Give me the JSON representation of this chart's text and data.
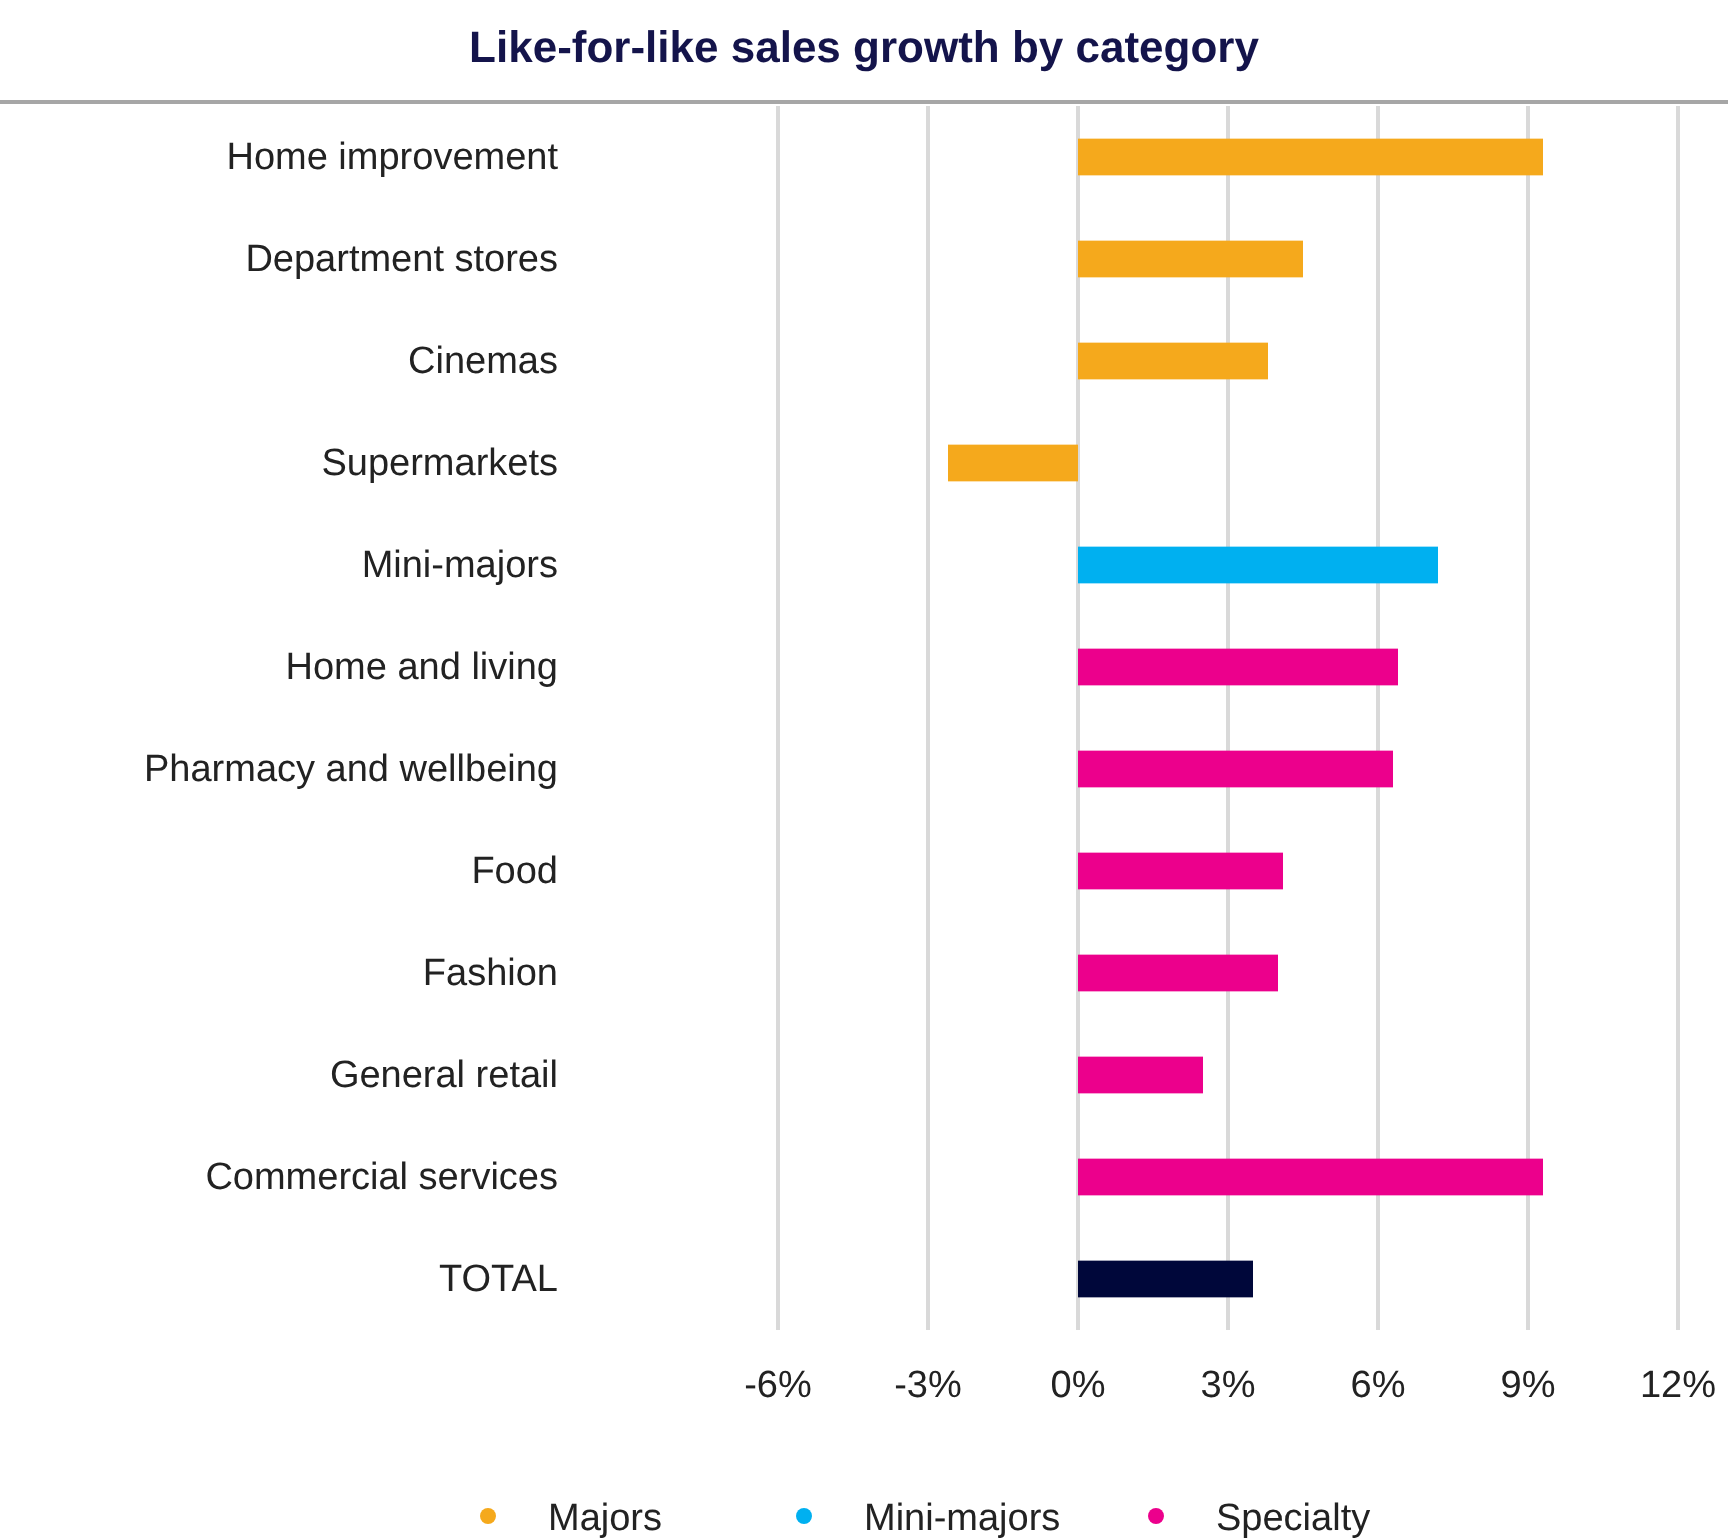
{
  "chart_data": {
    "type": "bar",
    "orientation": "horizontal",
    "stacked": true,
    "title": "Like-for-like sales growth by category",
    "categories": [
      "Home improvement",
      "Department stores",
      "Cinemas",
      "Supermarkets",
      "Mini-majors",
      "Home and living",
      "Pharmacy and wellbeing",
      "Food",
      "Fashion",
      "General retail",
      "Commercial services",
      "TOTAL"
    ],
    "series": [
      {
        "name": "Majors",
        "color": "#f5a91c",
        "values": [
          9.3,
          4.5,
          3.8,
          -2.6,
          null,
          null,
          null,
          null,
          null,
          null,
          null,
          null
        ]
      },
      {
        "name": "Mini-majors",
        "color": "#00b0f0",
        "values": [
          null,
          null,
          null,
          null,
          7.2,
          null,
          null,
          null,
          null,
          null,
          null,
          null
        ]
      },
      {
        "name": "Specialty",
        "color": "#ec008c",
        "values": [
          null,
          null,
          null,
          null,
          null,
          6.4,
          6.3,
          4.1,
          4.0,
          2.5,
          9.3,
          null
        ]
      },
      {
        "color": "#00073a",
        "values": [
          null,
          null,
          null,
          null,
          null,
          null,
          null,
          null,
          null,
          null,
          null,
          3.5
        ]
      }
    ],
    "xlim": [
      -6,
      12
    ],
    "xticks": [
      {
        "value": -6,
        "label": "-6%"
      },
      {
        "value": -3,
        "label": "-3%"
      },
      {
        "value": 0,
        "label": "0%"
      },
      {
        "value": 3,
        "label": "3%"
      },
      {
        "value": 6,
        "label": "6%"
      },
      {
        "value": 9,
        "label": "9%"
      },
      {
        "value": 12,
        "label": "12%"
      }
    ],
    "grid": "x",
    "legend": "bottom",
    "marker": "circle"
  }
}
